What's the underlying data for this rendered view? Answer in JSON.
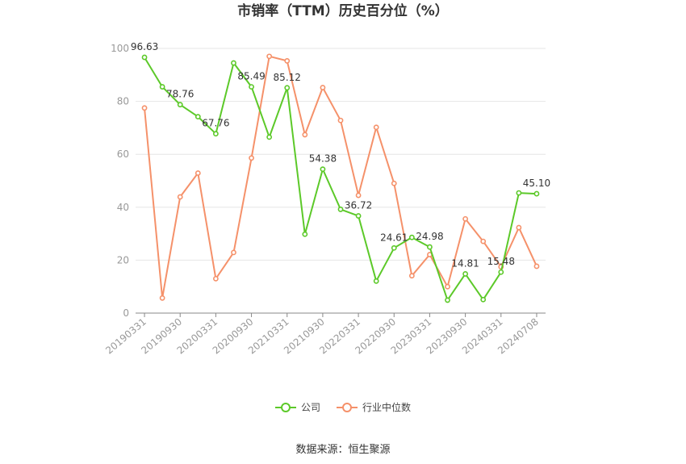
{
  "chart_data": {
    "type": "line",
    "title": "市销率（TTM）历史百分位（%）",
    "xlabel": "",
    "ylabel": "",
    "ylim": [
      0,
      100
    ],
    "yticks": [
      0,
      20,
      40,
      60,
      80,
      100
    ],
    "x": [
      "20190331",
      "20190630",
      "20190930",
      "20191231",
      "20200331",
      "20200630",
      "20200930",
      "20201231",
      "20210331",
      "20210630",
      "20210930",
      "20211231",
      "20220331",
      "20220630",
      "20220930",
      "20221231",
      "20230331",
      "20230630",
      "20230930",
      "20231231",
      "20240331",
      "20240630",
      "20240708"
    ],
    "xtick_labels": [
      "20190331",
      "20190930",
      "20200331",
      "20200930",
      "20210331",
      "20210930",
      "20220331",
      "20220930",
      "20230331",
      "20230930",
      "20240331",
      "20240708"
    ],
    "series": [
      {
        "name": "公司",
        "color": "#5cc929",
        "values": [
          96.63,
          85.5,
          78.76,
          74.2,
          67.76,
          94.5,
          85.49,
          66.5,
          85.12,
          29.8,
          54.38,
          39.2,
          36.72,
          12.1,
          24.61,
          28.6,
          24.98,
          4.9,
          14.81,
          5.1,
          15.48,
          45.4,
          45.1
        ],
        "data_labels": {
          "0": "96.63",
          "2": "78.76",
          "4": "67.76",
          "6": "85.49",
          "8": "85.12",
          "10": "54.38",
          "12": "36.72",
          "14": "24.61",
          "16": "24.98",
          "18": "14.81",
          "20": "15.48",
          "22": "45.10"
        }
      },
      {
        "name": "行业中位数",
        "color": "#f5916a",
        "values": [
          77.5,
          5.7,
          43.9,
          52.9,
          13.0,
          22.9,
          58.6,
          97.0,
          95.3,
          67.4,
          85.2,
          72.8,
          44.5,
          70.2,
          49.0,
          14.1,
          22.1,
          10.0,
          35.6,
          27.1,
          17.5,
          32.3,
          17.7
        ]
      }
    ],
    "grid": true,
    "legend_position": "bottom"
  },
  "source": "数据来源：恒生聚源"
}
